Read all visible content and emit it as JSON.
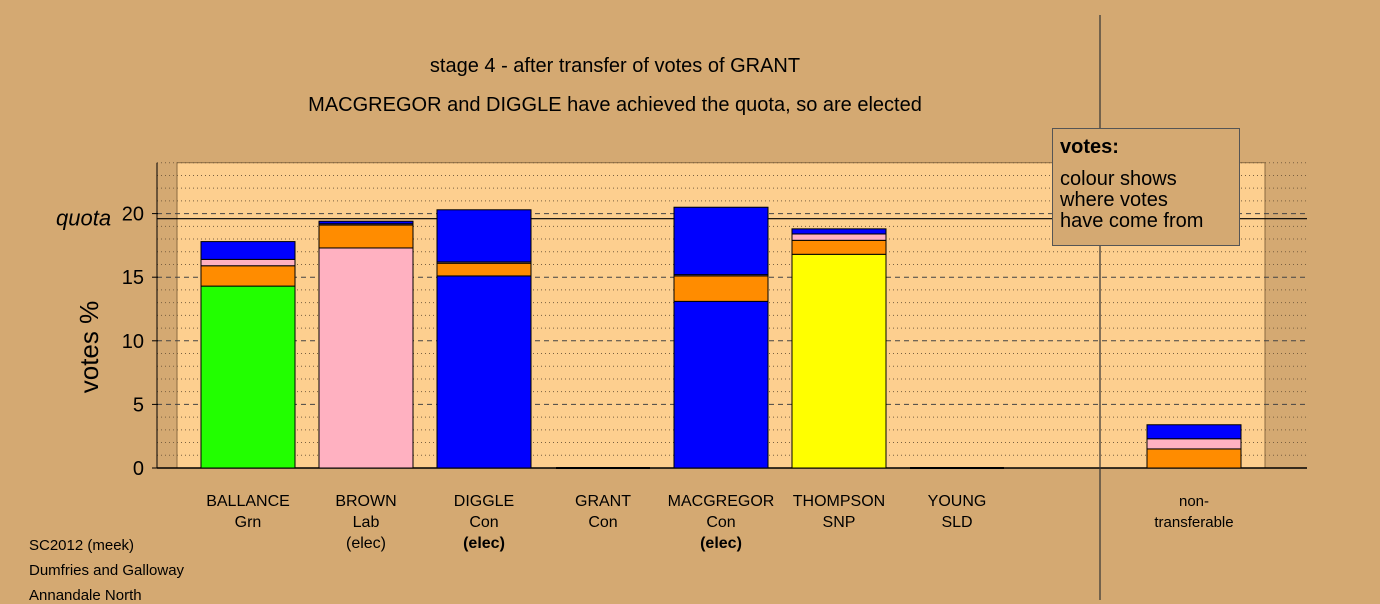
{
  "titles": {
    "line1": "stage 4 - after transfer of votes of GRANT",
    "line2": "MACGREGOR and DIGGLE have achieved the quota, so are elected"
  },
  "legend": {
    "heading": "votes:",
    "line1": "colour shows",
    "line2": "where votes",
    "line3": "have come from"
  },
  "footer": {
    "line1": "SC2012 (meek)",
    "line2": "Dumfries and Galloway",
    "line3": "Annandale North"
  },
  "colors": {
    "background": "#d4a972",
    "plot_area": "#fdcf8f",
    "Grn": "#22ff00",
    "Lab": "#ffb1c1",
    "Con": "#0000ff",
    "SNP": "#ffff00",
    "SLD": "#ff8c00"
  },
  "candidates": [
    {
      "name": "BALLANCE",
      "party": "Grn",
      "status": ""
    },
    {
      "name": "BROWN",
      "party": "Lab",
      "status": "(elec)"
    },
    {
      "name": "DIGGLE",
      "party": "Con",
      "status": "(elec)"
    },
    {
      "name": "GRANT",
      "party": "Con",
      "status": ""
    },
    {
      "name": "MACGREGOR",
      "party": "Con",
      "status": "(elec)"
    },
    {
      "name": "THOMPSON",
      "party": "SNP",
      "status": ""
    },
    {
      "name": "YOUNG",
      "party": "SLD",
      "status": ""
    }
  ],
  "nontransferable": {
    "line1": "non-",
    "line2": "transferable"
  },
  "chart_data": {
    "type": "bar",
    "stacked": true,
    "ylabel": "votes %",
    "ylim": [
      0,
      24
    ],
    "yticks": [
      0,
      5,
      10,
      15,
      20
    ],
    "quota": 19.6,
    "quota_label": "quota",
    "grid": true,
    "categories": [
      "BALLANCE",
      "BROWN",
      "DIGGLE",
      "GRANT",
      "MACGREGOR",
      "THOMPSON",
      "YOUNG",
      "non-transferable"
    ],
    "stacks": [
      [
        {
          "from": "Grn",
          "value": 14.3
        },
        {
          "from": "SLD",
          "value": 1.6
        },
        {
          "from": "Lab",
          "value": 0.5
        },
        {
          "from": "Con",
          "value": 1.4
        }
      ],
      [
        {
          "from": "Lab",
          "value": 17.3
        },
        {
          "from": "SLD",
          "value": 1.8
        },
        {
          "from": "Lab",
          "value": 0.1
        },
        {
          "from": "Con",
          "value": 0.2
        }
      ],
      [
        {
          "from": "Con",
          "value": 15.1
        },
        {
          "from": "SLD",
          "value": 1.0
        },
        {
          "from": "Lab",
          "value": 0.1
        },
        {
          "from": "Con",
          "value": 4.1
        }
      ],
      [],
      [
        {
          "from": "Con",
          "value": 13.1
        },
        {
          "from": "SLD",
          "value": 2.0
        },
        {
          "from": "Lab",
          "value": 0.1
        },
        {
          "from": "Con",
          "value": 5.3
        }
      ],
      [
        {
          "from": "SNP",
          "value": 16.8
        },
        {
          "from": "SLD",
          "value": 1.1
        },
        {
          "from": "Lab",
          "value": 0.5
        },
        {
          "from": "Con",
          "value": 0.4
        }
      ],
      [],
      [
        {
          "from": "SLD",
          "value": 1.5
        },
        {
          "from": "Lab",
          "value": 0.8
        },
        {
          "from": "Con",
          "value": 1.1
        }
      ]
    ]
  }
}
